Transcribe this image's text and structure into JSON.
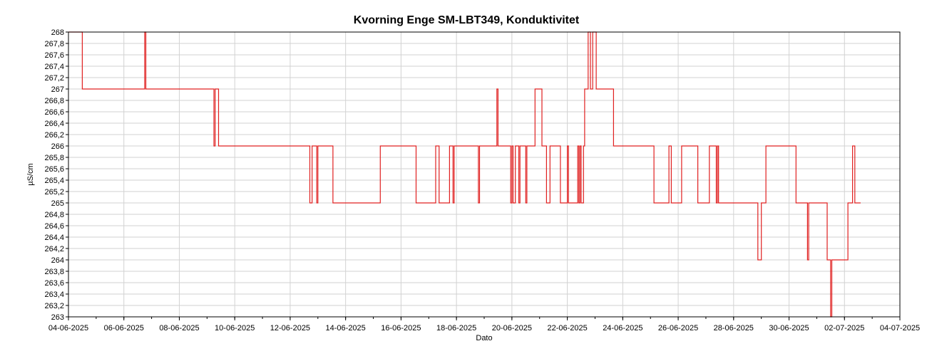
{
  "chart_data": {
    "type": "line",
    "title": "Kvorning Enge SM-LBT349, Konduktivitet",
    "xlabel": "Dato",
    "ylabel": "µS/cm",
    "ylim": [
      263,
      268
    ],
    "xlim": [
      "04-06-2025",
      "04-07-2025"
    ],
    "x_ticks": [
      "04-06-2025",
      "06-06-2025",
      "08-06-2025",
      "10-06-2025",
      "12-06-2025",
      "14-06-2025",
      "16-06-2025",
      "18-06-2025",
      "20-06-2025",
      "22-06-2025",
      "24-06-2025",
      "26-06-2025",
      "28-06-2025",
      "30-06-2025",
      "02-07-2025",
      "04-07-2025"
    ],
    "y_ticks": [
      "263",
      "263,2",
      "263,4",
      "263,6",
      "263,8",
      "264",
      "264,2",
      "264,4",
      "264,6",
      "264,8",
      "265",
      "265,2",
      "265,4",
      "265,6",
      "265,8",
      "266",
      "266,2",
      "266,4",
      "266,6",
      "266,8",
      "267",
      "267,2",
      "267,4",
      "267,6",
      "267,8",
      "268"
    ],
    "grid": true,
    "series_color": "#e02020",
    "series": [
      {
        "points": [
          [
            "04-06-2025 00:00",
            268
          ],
          [
            "04-06-2025 12:00",
            268
          ],
          [
            "04-06-2025 12:00",
            267
          ],
          [
            "06-06-2025 18:00",
            267
          ],
          [
            "06-06-2025 18:00",
            268
          ],
          [
            "06-06-2025 19:00",
            268
          ],
          [
            "06-06-2025 19:00",
            267
          ],
          [
            "09-06-2025 06:00",
            267
          ],
          [
            "09-06-2025 06:00",
            266
          ],
          [
            "09-06-2025 07:00",
            266
          ],
          [
            "09-06-2025 07:00",
            267
          ],
          [
            "09-06-2025 10:00",
            267
          ],
          [
            "09-06-2025 10:00",
            266
          ],
          [
            "12-06-2025 17:00",
            266
          ],
          [
            "12-06-2025 17:00",
            265
          ],
          [
            "12-06-2025 19:00",
            265
          ],
          [
            "12-06-2025 19:00",
            266
          ],
          [
            "12-06-2025 23:00",
            266
          ],
          [
            "12-06-2025 23:00",
            265
          ],
          [
            "13-06-2025 00:00",
            265
          ],
          [
            "13-06-2025 00:00",
            266
          ],
          [
            "13-06-2025 13:00",
            266
          ],
          [
            "13-06-2025 13:00",
            265
          ],
          [
            "15-06-2025 06:00",
            265
          ],
          [
            "15-06-2025 06:00",
            266
          ],
          [
            "16-06-2025 13:00",
            266
          ],
          [
            "16-06-2025 13:00",
            265
          ],
          [
            "17-06-2025 06:00",
            265
          ],
          [
            "17-06-2025 06:00",
            266
          ],
          [
            "17-06-2025 09:00",
            266
          ],
          [
            "17-06-2025 09:00",
            265
          ],
          [
            "17-06-2025 18:00",
            265
          ],
          [
            "17-06-2025 18:00",
            266
          ],
          [
            "17-06-2025 21:00",
            266
          ],
          [
            "17-06-2025 21:00",
            265
          ],
          [
            "17-06-2025 22:00",
            265
          ],
          [
            "17-06-2025 22:00",
            266
          ],
          [
            "18-06-2025 19:00",
            266
          ],
          [
            "18-06-2025 19:00",
            265
          ],
          [
            "18-06-2025 20:00",
            265
          ],
          [
            "18-06-2025 20:00",
            266
          ],
          [
            "19-06-2025 11:00",
            266
          ],
          [
            "19-06-2025 11:00",
            267
          ],
          [
            "19-06-2025 12:00",
            267
          ],
          [
            "19-06-2025 12:00",
            266
          ],
          [
            "19-06-2025 23:00",
            266
          ],
          [
            "19-06-2025 23:00",
            265
          ],
          [
            "20-06-2025 00:00",
            265
          ],
          [
            "20-06-2025 00:00",
            266
          ],
          [
            "20-06-2025 01:00",
            266
          ],
          [
            "20-06-2025 01:00",
            265
          ],
          [
            "20-06-2025 03:00",
            265
          ],
          [
            "20-06-2025 03:00",
            266
          ],
          [
            "20-06-2025 06:00",
            266
          ],
          [
            "20-06-2025 06:00",
            265
          ],
          [
            "20-06-2025 07:00",
            265
          ],
          [
            "20-06-2025 07:00",
            266
          ],
          [
            "20-06-2025 12:00",
            266
          ],
          [
            "20-06-2025 12:00",
            265
          ],
          [
            "20-06-2025 13:00",
            265
          ],
          [
            "20-06-2025 13:00",
            266
          ],
          [
            "20-06-2025 20:00",
            266
          ],
          [
            "20-06-2025 20:00",
            267
          ],
          [
            "21-06-2025 02:00",
            267
          ],
          [
            "21-06-2025 02:00",
            266
          ],
          [
            "21-06-2025 06:00",
            266
          ],
          [
            "21-06-2025 06:00",
            265
          ],
          [
            "21-06-2025 09:00",
            265
          ],
          [
            "21-06-2025 09:00",
            266
          ],
          [
            "21-06-2025 18:00",
            266
          ],
          [
            "21-06-2025 18:00",
            265
          ],
          [
            "22-06-2025 00:00",
            265
          ],
          [
            "22-06-2025 00:00",
            266
          ],
          [
            "22-06-2025 01:00",
            266
          ],
          [
            "22-06-2025 01:00",
            265
          ],
          [
            "22-06-2025 09:00",
            265
          ],
          [
            "22-06-2025 09:00",
            266
          ],
          [
            "22-06-2025 10:00",
            266
          ],
          [
            "22-06-2025 10:00",
            265
          ],
          [
            "22-06-2025 11:00",
            265
          ],
          [
            "22-06-2025 11:00",
            266
          ],
          [
            "22-06-2025 12:00",
            266
          ],
          [
            "22-06-2025 12:00",
            265
          ],
          [
            "22-06-2025 14:00",
            265
          ],
          [
            "22-06-2025 14:00",
            266
          ],
          [
            "22-06-2025 15:00",
            266
          ],
          [
            "22-06-2025 15:00",
            267
          ],
          [
            "22-06-2025 18:00",
            267
          ],
          [
            "22-06-2025 18:00",
            268
          ],
          [
            "22-06-2025 20:00",
            268
          ],
          [
            "22-06-2025 20:00",
            267
          ],
          [
            "22-06-2025 22:00",
            267
          ],
          [
            "22-06-2025 22:00",
            268
          ],
          [
            "23-06-2025 01:00",
            268
          ],
          [
            "23-06-2025 01:00",
            267
          ],
          [
            "23-06-2025 16:00",
            267
          ],
          [
            "23-06-2025 16:00",
            266
          ],
          [
            "25-06-2025 03:00",
            266
          ],
          [
            "25-06-2025 03:00",
            265
          ],
          [
            "25-06-2025 16:00",
            265
          ],
          [
            "25-06-2025 16:00",
            266
          ],
          [
            "25-06-2025 18:00",
            266
          ],
          [
            "25-06-2025 18:00",
            265
          ],
          [
            "26-06-2025 03:00",
            265
          ],
          [
            "26-06-2025 03:00",
            266
          ],
          [
            "26-06-2025 17:00",
            266
          ],
          [
            "26-06-2025 17:00",
            265
          ],
          [
            "27-06-2025 03:00",
            265
          ],
          [
            "27-06-2025 03:00",
            266
          ],
          [
            "27-06-2025 09:00",
            266
          ],
          [
            "27-06-2025 09:00",
            265
          ],
          [
            "27-06-2025 10:00",
            265
          ],
          [
            "27-06-2025 10:00",
            266
          ],
          [
            "27-06-2025 11:00",
            266
          ],
          [
            "27-06-2025 11:00",
            265
          ],
          [
            "28-06-2025 21:00",
            265
          ],
          [
            "28-06-2025 21:00",
            264
          ],
          [
            "29-06-2025 00:00",
            264
          ],
          [
            "29-06-2025 00:00",
            265
          ],
          [
            "29-06-2025 04:00",
            265
          ],
          [
            "29-06-2025 04:00",
            266
          ],
          [
            "30-06-2025 06:00",
            266
          ],
          [
            "30-06-2025 06:00",
            265
          ],
          [
            "30-06-2025 16:00",
            265
          ],
          [
            "30-06-2025 16:00",
            264
          ],
          [
            "30-06-2025 17:00",
            264
          ],
          [
            "30-06-2025 17:00",
            265
          ],
          [
            "01-07-2025 09:00",
            265
          ],
          [
            "01-07-2025 09:00",
            264
          ],
          [
            "01-07-2025 12:00",
            264
          ],
          [
            "01-07-2025 12:00",
            263
          ],
          [
            "01-07-2025 13:00",
            263
          ],
          [
            "01-07-2025 13:00",
            264
          ],
          [
            "02-07-2025 03:00",
            264
          ],
          [
            "02-07-2025 03:00",
            265
          ],
          [
            "02-07-2025 07:00",
            265
          ],
          [
            "02-07-2025 07:00",
            266
          ],
          [
            "02-07-2025 09:00",
            266
          ],
          [
            "02-07-2025 09:00",
            265
          ],
          [
            "02-07-2025 14:00",
            265
          ]
        ]
      }
    ]
  }
}
